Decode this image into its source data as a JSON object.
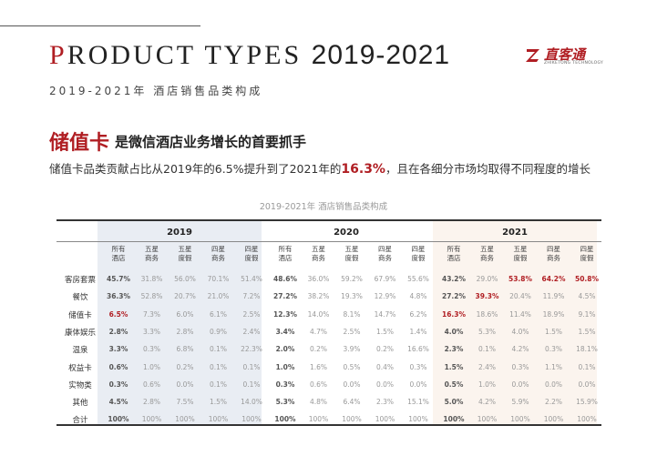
{
  "title": {
    "first_letter": "P",
    "rest": "RODUCT TYPES",
    "year": "2019-2021"
  },
  "subtitle": "2019-2021年 酒店销售品类构成",
  "logo": {
    "name": "直客通",
    "tagline": "ZHIKETONG TECHNOLOGY"
  },
  "headline": {
    "big": "储值卡",
    "rest": "是微信酒店业务增长的首要抓手"
  },
  "description": {
    "before": "储值卡品类贡献占比从2019年的6.5%提升到了2021年的",
    "highlight": "16.3%",
    "after": "，且在各细分市场均取得不同程度的增长"
  },
  "table_caption": "2019-2021年 酒店销售品类构成",
  "colors": {
    "accent": "#b01e23",
    "shade_2019": "#e9edf3",
    "shade_2021": "#fbf4ee"
  },
  "table": {
    "years": [
      "2019",
      "2020",
      "2021"
    ],
    "columns": [
      "所有\n酒店",
      "五星\n商务",
      "五星\n度假",
      "四星\n商务",
      "四星\n度假"
    ],
    "rows": [
      {
        "label": "客房套票",
        "values": [
          [
            "45.7%",
            "31.8%",
            "56.0%",
            "70.1%",
            "51.4%"
          ],
          [
            "48.6%",
            "36.0%",
            "59.2%",
            "67.9%",
            "55.6%"
          ],
          [
            "43.2%",
            "29.0%",
            "53.8%",
            "64.2%",
            "50.8%"
          ]
        ]
      },
      {
        "label": "餐饮",
        "values": [
          [
            "36.3%",
            "52.8%",
            "20.7%",
            "21.0%",
            "7.2%"
          ],
          [
            "27.2%",
            "38.2%",
            "19.3%",
            "12.9%",
            "4.8%"
          ],
          [
            "27.2%",
            "39.3%",
            "20.4%",
            "11.9%",
            "4.5%"
          ]
        ]
      },
      {
        "label": "储值卡",
        "values": [
          [
            "6.5%",
            "7.3%",
            "6.0%",
            "6.1%",
            "2.5%"
          ],
          [
            "12.3%",
            "14.0%",
            "8.1%",
            "14.7%",
            "6.2%"
          ],
          [
            "16.3%",
            "18.6%",
            "11.4%",
            "18.9%",
            "9.1%"
          ]
        ]
      },
      {
        "label": "康体娱乐",
        "values": [
          [
            "2.8%",
            "3.3%",
            "2.8%",
            "0.9%",
            "2.4%"
          ],
          [
            "3.4%",
            "4.7%",
            "2.5%",
            "1.5%",
            "1.4%"
          ],
          [
            "4.0%",
            "5.3%",
            "4.0%",
            "1.5%",
            "1.5%"
          ]
        ]
      },
      {
        "label": "温泉",
        "values": [
          [
            "3.3%",
            "0.3%",
            "6.8%",
            "0.1%",
            "22.3%"
          ],
          [
            "2.0%",
            "0.2%",
            "3.9%",
            "0.2%",
            "16.6%"
          ],
          [
            "2.3%",
            "0.1%",
            "4.2%",
            "0.3%",
            "18.1%"
          ]
        ]
      },
      {
        "label": "权益卡",
        "values": [
          [
            "0.6%",
            "1.0%",
            "0.2%",
            "0.1%",
            "0.1%"
          ],
          [
            "1.0%",
            "1.6%",
            "0.5%",
            "0.4%",
            "0.3%"
          ],
          [
            "1.5%",
            "2.4%",
            "0.3%",
            "1.1%",
            "0.1%"
          ]
        ]
      },
      {
        "label": "实物类",
        "values": [
          [
            "0.3%",
            "0.6%",
            "0.0%",
            "0.1%",
            "0.1%"
          ],
          [
            "0.3%",
            "0.6%",
            "0.0%",
            "0.0%",
            "0.0%"
          ],
          [
            "0.5%",
            "1.0%",
            "0.0%",
            "0.0%",
            "0.0%"
          ]
        ]
      },
      {
        "label": "其他",
        "values": [
          [
            "4.5%",
            "2.8%",
            "7.5%",
            "1.5%",
            "14.0%"
          ],
          [
            "5.3%",
            "4.8%",
            "6.4%",
            "2.3%",
            "15.1%"
          ],
          [
            "5.0%",
            "4.2%",
            "5.9%",
            "2.2%",
            "15.9%"
          ]
        ]
      },
      {
        "label": "合计",
        "values": [
          [
            "100%",
            "100%",
            "100%",
            "100%",
            "100%"
          ],
          [
            "100%",
            "100%",
            "100%",
            "100%",
            "100%"
          ],
          [
            "100%",
            "100%",
            "100%",
            "100%",
            "100%"
          ]
        ]
      }
    ],
    "highlights": [
      {
        "row": 2,
        "year": 0,
        "col": 0
      },
      {
        "row": 2,
        "year": 2,
        "col": 0
      },
      {
        "row": 0,
        "year": 2,
        "col": 2
      },
      {
        "row": 0,
        "year": 2,
        "col": 3
      },
      {
        "row": 0,
        "year": 2,
        "col": 4
      },
      {
        "row": 1,
        "year": 2,
        "col": 1
      }
    ]
  }
}
